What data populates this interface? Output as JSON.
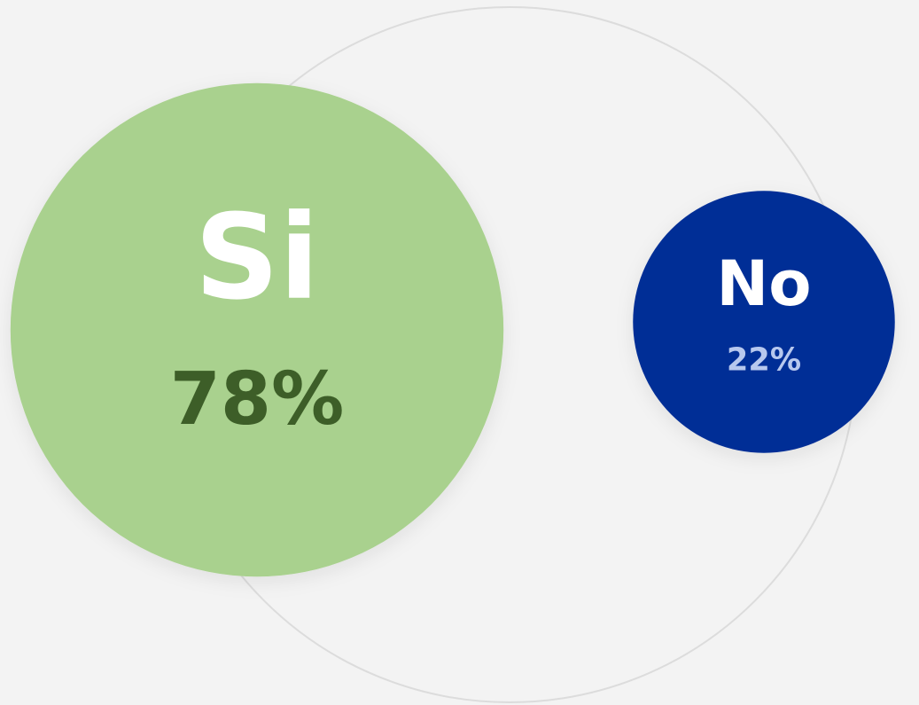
{
  "chart_data": {
    "type": "bubble",
    "categories": [
      "Si",
      "No"
    ],
    "values": [
      78,
      22
    ],
    "value_labels": [
      "78%",
      "22%"
    ],
    "colors": [
      "#a9d18e",
      "#002d96"
    ],
    "label_colors": [
      "#3d5e28",
      "#b7c8ee"
    ]
  }
}
